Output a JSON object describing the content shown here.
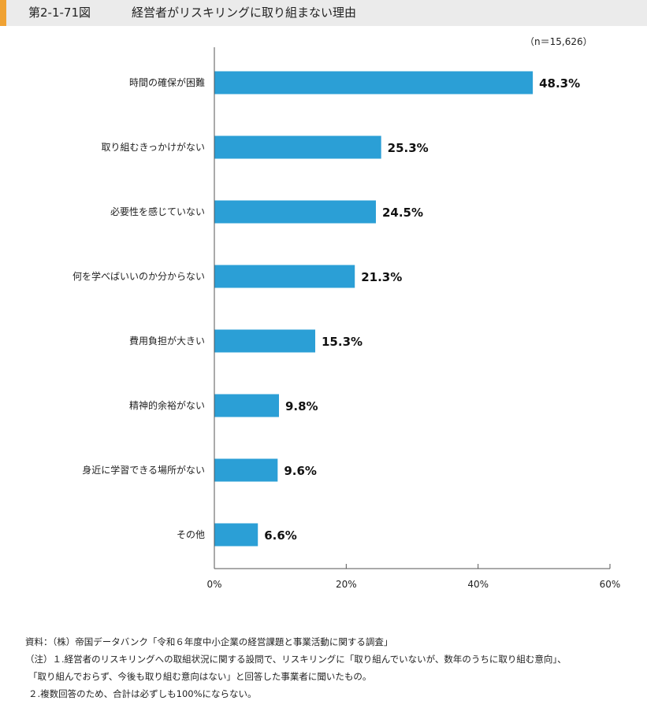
{
  "header": {
    "figure_number": "第2-1-71図",
    "title": "経営者がリスキリングに取り組まない理由",
    "accent_color": "#f0a233"
  },
  "sample_size": "（n＝15,626）",
  "chart_data": {
    "type": "bar",
    "orientation": "horizontal",
    "categories": [
      "時間の確保が困難",
      "取り組むきっかけがない",
      "必要性を感じていない",
      "何を学べばいいのか分からない",
      "費用負担が大きい",
      "精神的余裕がない",
      "身近に学習できる場所がない",
      "その他"
    ],
    "values": [
      48.3,
      25.3,
      24.5,
      21.3,
      15.3,
      9.8,
      9.6,
      6.6
    ],
    "value_labels": [
      "48.3%",
      "25.3%",
      "24.5%",
      "21.3%",
      "15.3%",
      "9.8%",
      "9.6%",
      "6.6%"
    ],
    "xlim": [
      0,
      60
    ],
    "xticks": [
      0,
      20,
      40,
      60
    ],
    "xtick_labels": [
      "0%",
      "20%",
      "40%",
      "60%"
    ],
    "grid": false,
    "bar_color": "#2b9fd6"
  },
  "notes": {
    "source": "資料：（株）帝国データバンク「令和６年度中小企業の経営課題と事業活動に関する調査」",
    "note1a": "（注）１.経営者のリスキリングへの取組状況に関する設問で、リスキリングに「取り組んでいないが、数年のうちに取り組む意向」、",
    "note1b": "「取り組んでおらず、今後も取り組む意向はない」と回答した事業者に聞いたもの。",
    "note2": "２.複数回答のため、合計は必ずしも100%にならない。"
  }
}
